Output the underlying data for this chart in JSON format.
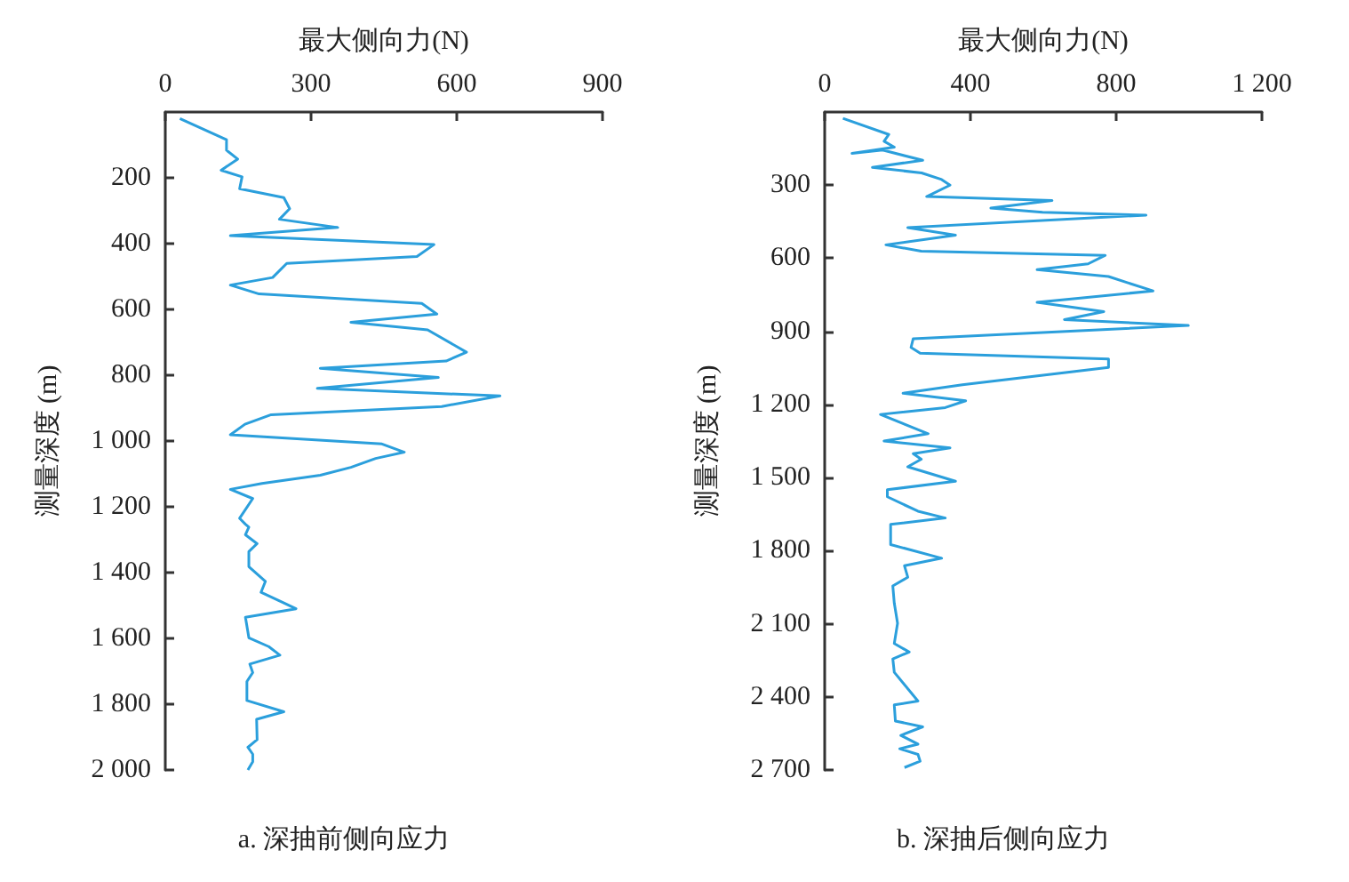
{
  "chart_data": [
    {
      "type": "line",
      "xlabel": "最大侧向力(N)",
      "ylabel": "测量深度 (m)",
      "annotations": [
        "a. 深抽前侧向应力"
      ],
      "xlim": [
        0,
        900
      ],
      "xticks": [
        0,
        300,
        600,
        900
      ],
      "ylim": [
        2000,
        0
      ],
      "yticks": [
        200,
        400,
        600,
        800,
        {
          "value": 1000,
          "label": "1 000"
        },
        {
          "value": 1200,
          "label": "1 200"
        },
        {
          "value": 1400,
          "label": "1 400"
        },
        {
          "value": 1600,
          "label": "1 600"
        },
        {
          "value": 1800,
          "label": "1 800"
        },
        {
          "value": 2000,
          "label": "2 000"
        }
      ],
      "grid": false,
      "series": [
        {
          "color": "#2b9fdc",
          "x": [
            30,
            126,
            126,
            149,
            115,
            158,
            153,
            244,
            256,
            235,
            355,
            134,
            553,
            518,
            250,
            221,
            134,
            193,
            528,
            559,
            382,
            540,
            620,
            578,
            319,
            562,
            313,
            689,
            569,
            218,
            164,
            134,
            446,
            492,
            433,
            382,
            319,
            199,
            134,
            180,
            153,
            165,
            172,
            165,
            189,
            172,
            172,
            206,
            197,
            244,
            269,
            165,
            172,
            213,
            236,
            174,
            180,
            168,
            168,
            244,
            188,
            189,
            170,
            180,
            180,
            170
          ],
          "values": [
            20,
            84,
            116,
            143,
            177,
            197,
            233,
            260,
            294,
            326,
            351,
            376,
            403,
            439,
            460,
            503,
            526,
            553,
            582,
            614,
            639,
            662,
            730,
            757,
            779,
            807,
            840,
            863,
            895,
            920,
            949,
            981,
            1009,
            1034,
            1053,
            1080,
            1104,
            1129,
            1147,
            1175,
            1235,
            1253,
            1262,
            1285,
            1312,
            1336,
            1382,
            1427,
            1460,
            1492,
            1510,
            1536,
            1598,
            1625,
            1651,
            1678,
            1704,
            1731,
            1789,
            1823,
            1846,
            1908,
            1931,
            1952,
            1975,
            2000
          ]
        }
      ]
    },
    {
      "type": "line",
      "xlabel": "最大侧向力(N)",
      "ylabel": "测量深度 (m)",
      "annotations": [
        "b. 深抽后侧向应力"
      ],
      "xlim": [
        0,
        1200
      ],
      "xticks": [
        0,
        400,
        800,
        {
          "value": 1200,
          "label": "1 200"
        }
      ],
      "ylim": [
        2700,
        0
      ],
      "yticks": [
        300,
        600,
        900,
        {
          "value": 1200,
          "label": "1 200"
        },
        {
          "value": 1500,
          "label": "1 500"
        },
        {
          "value": 1800,
          "label": "1 800"
        },
        {
          "value": 2100,
          "label": "2 100"
        },
        {
          "value": 2400,
          "label": "2 400"
        },
        {
          "value": 2700,
          "label": "2 700"
        }
      ],
      "grid": false,
      "series": [
        {
          "color": "#2b9fdc",
          "x": [
            50,
            176,
            163,
            191,
            75,
            159,
            269,
            131,
            266,
            321,
            344,
            280,
            624,
            456,
            598,
            882,
            228,
            359,
            168,
            265,
            770,
            723,
            583,
            779,
            901,
            583,
            766,
            658,
            998,
            243,
            237,
            262,
            779,
            779,
            620,
            378,
            215,
            387,
            331,
            153,
            284,
            163,
            344,
            243,
            265,
            228,
            359,
            172,
            172,
            256,
            331,
            181,
            181,
            321,
            219,
            228,
            187,
            191,
            200,
            191,
            232,
            187,
            191,
            256,
            191,
            194,
            269,
            209,
            256,
            206,
            256,
            262,
            219
          ],
          "values": [
            26,
            92,
            120,
            144,
            170,
            156,
            198,
            227,
            250,
            277,
            300,
            347,
            363,
            394,
            411,
            423,
            474,
            505,
            545,
            571,
            588,
            623,
            647,
            675,
            734,
            781,
            819,
            852,
            876,
            930,
            966,
            990,
            1013,
            1048,
            1076,
            1119,
            1154,
            1185,
            1213,
            1241,
            1320,
            1350,
            1378,
            1402,
            1425,
            1456,
            1515,
            1550,
            1579,
            1638,
            1666,
            1692,
            1775,
            1831,
            1862,
            1909,
            1945,
            2015,
            2098,
            2181,
            2216,
            2244,
            2299,
            2417,
            2433,
            2499,
            2523,
            2558,
            2594,
            2613,
            2636,
            2664,
            2690
          ]
        }
      ]
    }
  ]
}
